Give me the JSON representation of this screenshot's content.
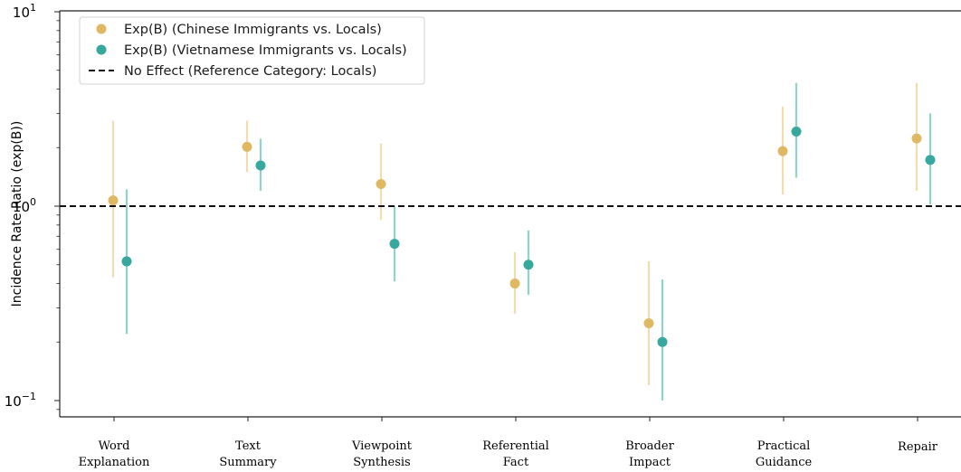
{
  "chart_data": {
    "type": "scatter",
    "title": "",
    "xlabel": "",
    "ylabel": "Incidence Rate Ratio (exp(B))",
    "yscale": "log",
    "ylim": [
      0.08,
      10
    ],
    "yticks": [
      {
        "value": 10,
        "base": "10",
        "exp": "1"
      },
      {
        "value": 1,
        "base": "10",
        "exp": "0"
      },
      {
        "value": 0.1,
        "base": "10",
        "exp": "−1"
      }
    ],
    "categories": [
      [
        "Word",
        "Explanation"
      ],
      [
        "Text",
        "Summary"
      ],
      [
        "Viewpoint",
        "Synthesis"
      ],
      [
        "Referential",
        "Fact"
      ],
      [
        "Broader",
        "Impact"
      ],
      [
        "Practical",
        "Guidance"
      ],
      [
        "Repair"
      ]
    ],
    "series": [
      {
        "name": "Exp(B) (Chinese Immigrants vs. Locals)",
        "color": "#dfb863",
        "errorColor": "#f2dcae",
        "values": [
          1.07,
          2.02,
          1.3,
          0.4,
          0.25,
          1.92,
          2.23
        ],
        "ci_low": [
          0.43,
          1.5,
          0.85,
          0.28,
          0.12,
          1.15,
          1.2
        ],
        "ci_high": [
          2.75,
          2.75,
          2.1,
          0.58,
          0.52,
          3.25,
          4.3
        ]
      },
      {
        "name": "Exp(B) (Vietnamese Immigrants vs. Locals)",
        "color": "#37a89e",
        "errorColor": "#8fd4cc",
        "values": [
          0.52,
          1.62,
          0.64,
          0.5,
          0.2,
          2.42,
          1.73
        ],
        "ci_low": [
          0.22,
          1.2,
          0.41,
          0.35,
          0.1,
          1.4,
          1.02
        ],
        "ci_high": [
          1.22,
          2.22,
          1.0,
          0.75,
          0.42,
          4.3,
          3.0
        ]
      }
    ],
    "reference_line": {
      "value": 1.0,
      "label": "No Effect (Reference Category: Locals)",
      "style": "dashed"
    },
    "legend": "top-left",
    "grid": false
  }
}
